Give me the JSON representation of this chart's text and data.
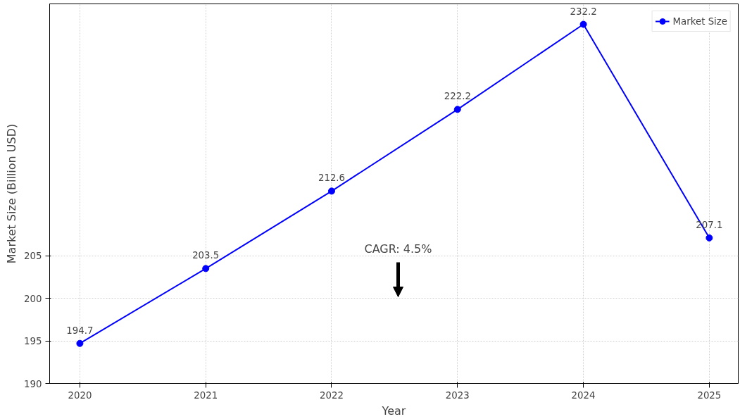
{
  "chart_data": {
    "type": "line",
    "xlabel": "Year",
    "ylabel": "Market Size (Billion USD)",
    "x": [
      2020,
      2021,
      2022,
      2023,
      2024,
      2025
    ],
    "series": [
      {
        "name": "Market Size",
        "color": "#0000ff",
        "values": [
          194.7,
          203.5,
          212.6,
          222.2,
          232.2,
          207.1
        ]
      }
    ],
    "xlim": [
      2019.76,
      2025.23
    ],
    "ylim": [
      190,
      234.6
    ],
    "xticks": [
      {
        "value": 2020,
        "label": "2020"
      },
      {
        "value": 2021,
        "label": "2021"
      },
      {
        "value": 2022,
        "label": "2022"
      },
      {
        "value": 2023,
        "label": "2023"
      },
      {
        "value": 2024,
        "label": "2024"
      },
      {
        "value": 2025,
        "label": "2025"
      }
    ],
    "yticks": [
      190,
      195,
      200,
      205
    ],
    "annotations": [
      "CAGR: 4.5%"
    ],
    "grid": true,
    "legend": "top right",
    "data_labels": true,
    "marker": "circle",
    "line_style": "solid"
  }
}
